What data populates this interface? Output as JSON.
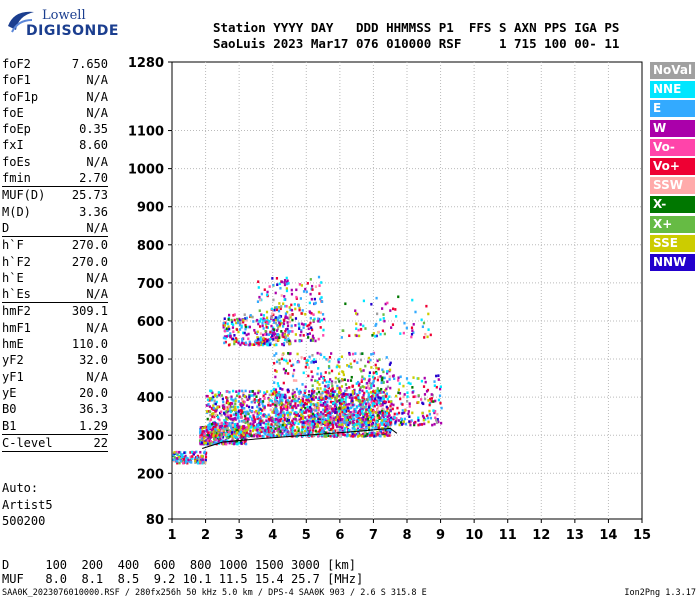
{
  "logo": {
    "line1": "Lowell",
    "line2": "DIGISONDE"
  },
  "header": {
    "line1": "Station YYYY DAY   DDD HHMMSS P1  FFS S AXN PPS IGA PS",
    "line2": "SaoLuis 2023 Mar17 076 010000 RSF     1 715 100 00- 11"
  },
  "params": [
    {
      "name": "foF2",
      "value": "7.650"
    },
    {
      "name": "foF1",
      "value": "N/A"
    },
    {
      "name": "foF1p",
      "value": "N/A"
    },
    {
      "name": "foE",
      "value": "N/A"
    },
    {
      "name": "foEp",
      "value": "0.35"
    },
    {
      "name": "fxI",
      "value": "8.60"
    },
    {
      "name": "foEs",
      "value": "N/A"
    },
    {
      "name": "fmin",
      "value": "2.70"
    },
    {
      "name": "MUF(D)",
      "value": "25.73"
    },
    {
      "name": "M(D)",
      "value": "3.36"
    },
    {
      "name": "D",
      "value": "N/A"
    },
    {
      "name": "h`F",
      "value": "270.0"
    },
    {
      "name": "h`F2",
      "value": "270.0"
    },
    {
      "name": "h`E",
      "value": "N/A"
    },
    {
      "name": "h`Es",
      "value": "N/A"
    },
    {
      "name": "hmF2",
      "value": "309.1"
    },
    {
      "name": "hmF1",
      "value": "N/A"
    },
    {
      "name": "hmE",
      "value": "110.0"
    },
    {
      "name": "yF2",
      "value": "32.0"
    },
    {
      "name": "yF1",
      "value": "N/A"
    },
    {
      "name": "yE",
      "value": "20.0"
    },
    {
      "name": "B0",
      "value": "36.3"
    },
    {
      "name": "B1",
      "value": "1.29"
    },
    {
      "name": "C-level",
      "value": "22"
    }
  ],
  "auto": {
    "line1": "Auto:",
    "line2": "Artist5",
    "line3": "500200"
  },
  "legend": [
    {
      "label": "NoVal",
      "color": "#a0a0a0"
    },
    {
      "label": "NNE",
      "color": "#00e6ff"
    },
    {
      "label": "E",
      "color": "#33aaff"
    },
    {
      "label": "W",
      "color": "#aa00aa"
    },
    {
      "label": "Vo-",
      "color": "#ff44aa"
    },
    {
      "label": "Vo+",
      "color": "#ee0033"
    },
    {
      "label": "SSW",
      "color": "#ffaaaa"
    },
    {
      "label": "X-",
      "color": "#007700"
    },
    {
      "label": "X+",
      "color": "#66bb44"
    },
    {
      "label": "SSE",
      "color": "#cccc00"
    },
    {
      "label": "NNW",
      "color": "#2200cc"
    }
  ],
  "bottom": {
    "d_line": "D     100  200  400  600  800 1000 1500 3000 [km]",
    "muf_line": "MUF   8.0  8.1  8.5  9.2 10.1 11.5 15.4 25.7 [MHz]"
  },
  "footer": {
    "left": "SAA0K_2023076010000.RSF / 280fx256h 50 kHz 5.0 km / DPS-4 SAA0K 903 / 2.6 S 315.8 E",
    "right": "Ion2Png 1.3.17"
  },
  "chart_data": {
    "type": "scatter",
    "x_ticks": [
      "1",
      "2",
      "3",
      "4",
      "5",
      "6",
      "7",
      "8",
      "9",
      "10",
      "11",
      "12",
      "13",
      "14",
      "15"
    ],
    "y_ticks": [
      "80",
      "200",
      "300",
      "400",
      "500",
      "600",
      "700",
      "800",
      "900",
      "1000",
      "1100",
      "1280"
    ],
    "xlim": [
      1,
      15
    ],
    "ylim": [
      80,
      1280
    ],
    "grid": true,
    "clusters": [
      {
        "x": [
          1.0,
          2.0
        ],
        "y": [
          230,
          260
        ],
        "n": 120
      },
      {
        "x": [
          1.8,
          3.2
        ],
        "y": [
          280,
          330
        ],
        "n": 340
      },
      {
        "x": [
          2.0,
          7.5
        ],
        "y": [
          300,
          420
        ],
        "n": 1700
      },
      {
        "x": [
          4.0,
          7.5
        ],
        "y": [
          330,
          520
        ],
        "n": 500
      },
      {
        "x": [
          2.5,
          4.5
        ],
        "y": [
          540,
          620
        ],
        "n": 240
      },
      {
        "x": [
          3.5,
          5.5
        ],
        "y": [
          550,
          720
        ],
        "n": 240
      },
      {
        "x": [
          5.0,
          9.0
        ],
        "y": [
          330,
          460
        ],
        "n": 380
      },
      {
        "x": [
          6.0,
          8.7
        ],
        "y": [
          560,
          670
        ],
        "n": 70
      }
    ],
    "trace": {
      "x": [
        1.9,
        2.5,
        3.5,
        5.0,
        6.5,
        7.5,
        7.7
      ],
      "y": [
        265,
        282,
        290,
        300,
        310,
        318,
        305
      ]
    }
  }
}
